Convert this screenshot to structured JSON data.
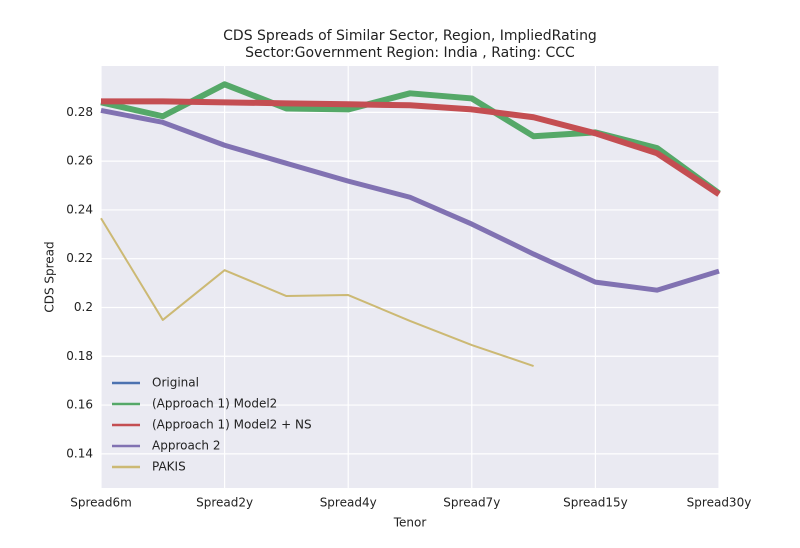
{
  "chart_data": {
    "type": "line",
    "title": "CDS Spreads of Similar Sector, Region, ImpliedRating",
    "subtitle": "Sector:Government Region: India , Rating: CCC",
    "xlabel": "Tenor",
    "ylabel": "CDS Spread",
    "categories": [
      "Spread6m",
      null,
      "Spread2y",
      null,
      "Spread4y",
      null,
      "Spread7y",
      null,
      "Spread15y",
      null,
      "Spread30y"
    ],
    "series": [
      {
        "name": "Original",
        "color": "#4c72b0",
        "values": [
          0.2841,
          0.2784,
          0.2915,
          0.2816,
          0.2812,
          0.2878,
          0.2857,
          0.2702,
          0.2718,
          0.2653,
          0.2468
        ]
      },
      {
        "name": "(Approach 1) Model2",
        "color": "#55a868",
        "values": [
          0.2841,
          0.2784,
          0.2915,
          0.2816,
          0.2812,
          0.2878,
          0.2857,
          0.2702,
          0.2718,
          0.2653,
          0.2468
        ]
      },
      {
        "name": "(Approach 1) Model2 + NS",
        "color": "#c44e52",
        "values": [
          0.2845,
          0.2845,
          0.2841,
          0.2837,
          0.2833,
          0.2829,
          0.2812,
          0.278,
          0.2714,
          0.2632,
          0.2464
        ]
      },
      {
        "name": "Approach 2",
        "color": "#8172b2",
        "values": [
          0.2808,
          0.2759,
          0.2665,
          0.2591,
          0.2518,
          0.2452,
          0.2342,
          0.2219,
          0.2104,
          0.2071,
          0.2149
        ]
      },
      {
        "name": "PAKIS",
        "color": "#ccb974",
        "values": [
          0.2366,
          0.1949,
          0.2153,
          0.2047,
          0.2051,
          0.1945,
          0.1846,
          0.176,
          null,
          null,
          null
        ]
      }
    ],
    "ylim": [
      0.126,
      0.299
    ],
    "yticks": [
      0.14,
      0.16,
      0.18,
      0.2,
      0.22,
      0.24,
      0.26,
      0.28
    ],
    "grid": true,
    "legend": "lower left"
  }
}
